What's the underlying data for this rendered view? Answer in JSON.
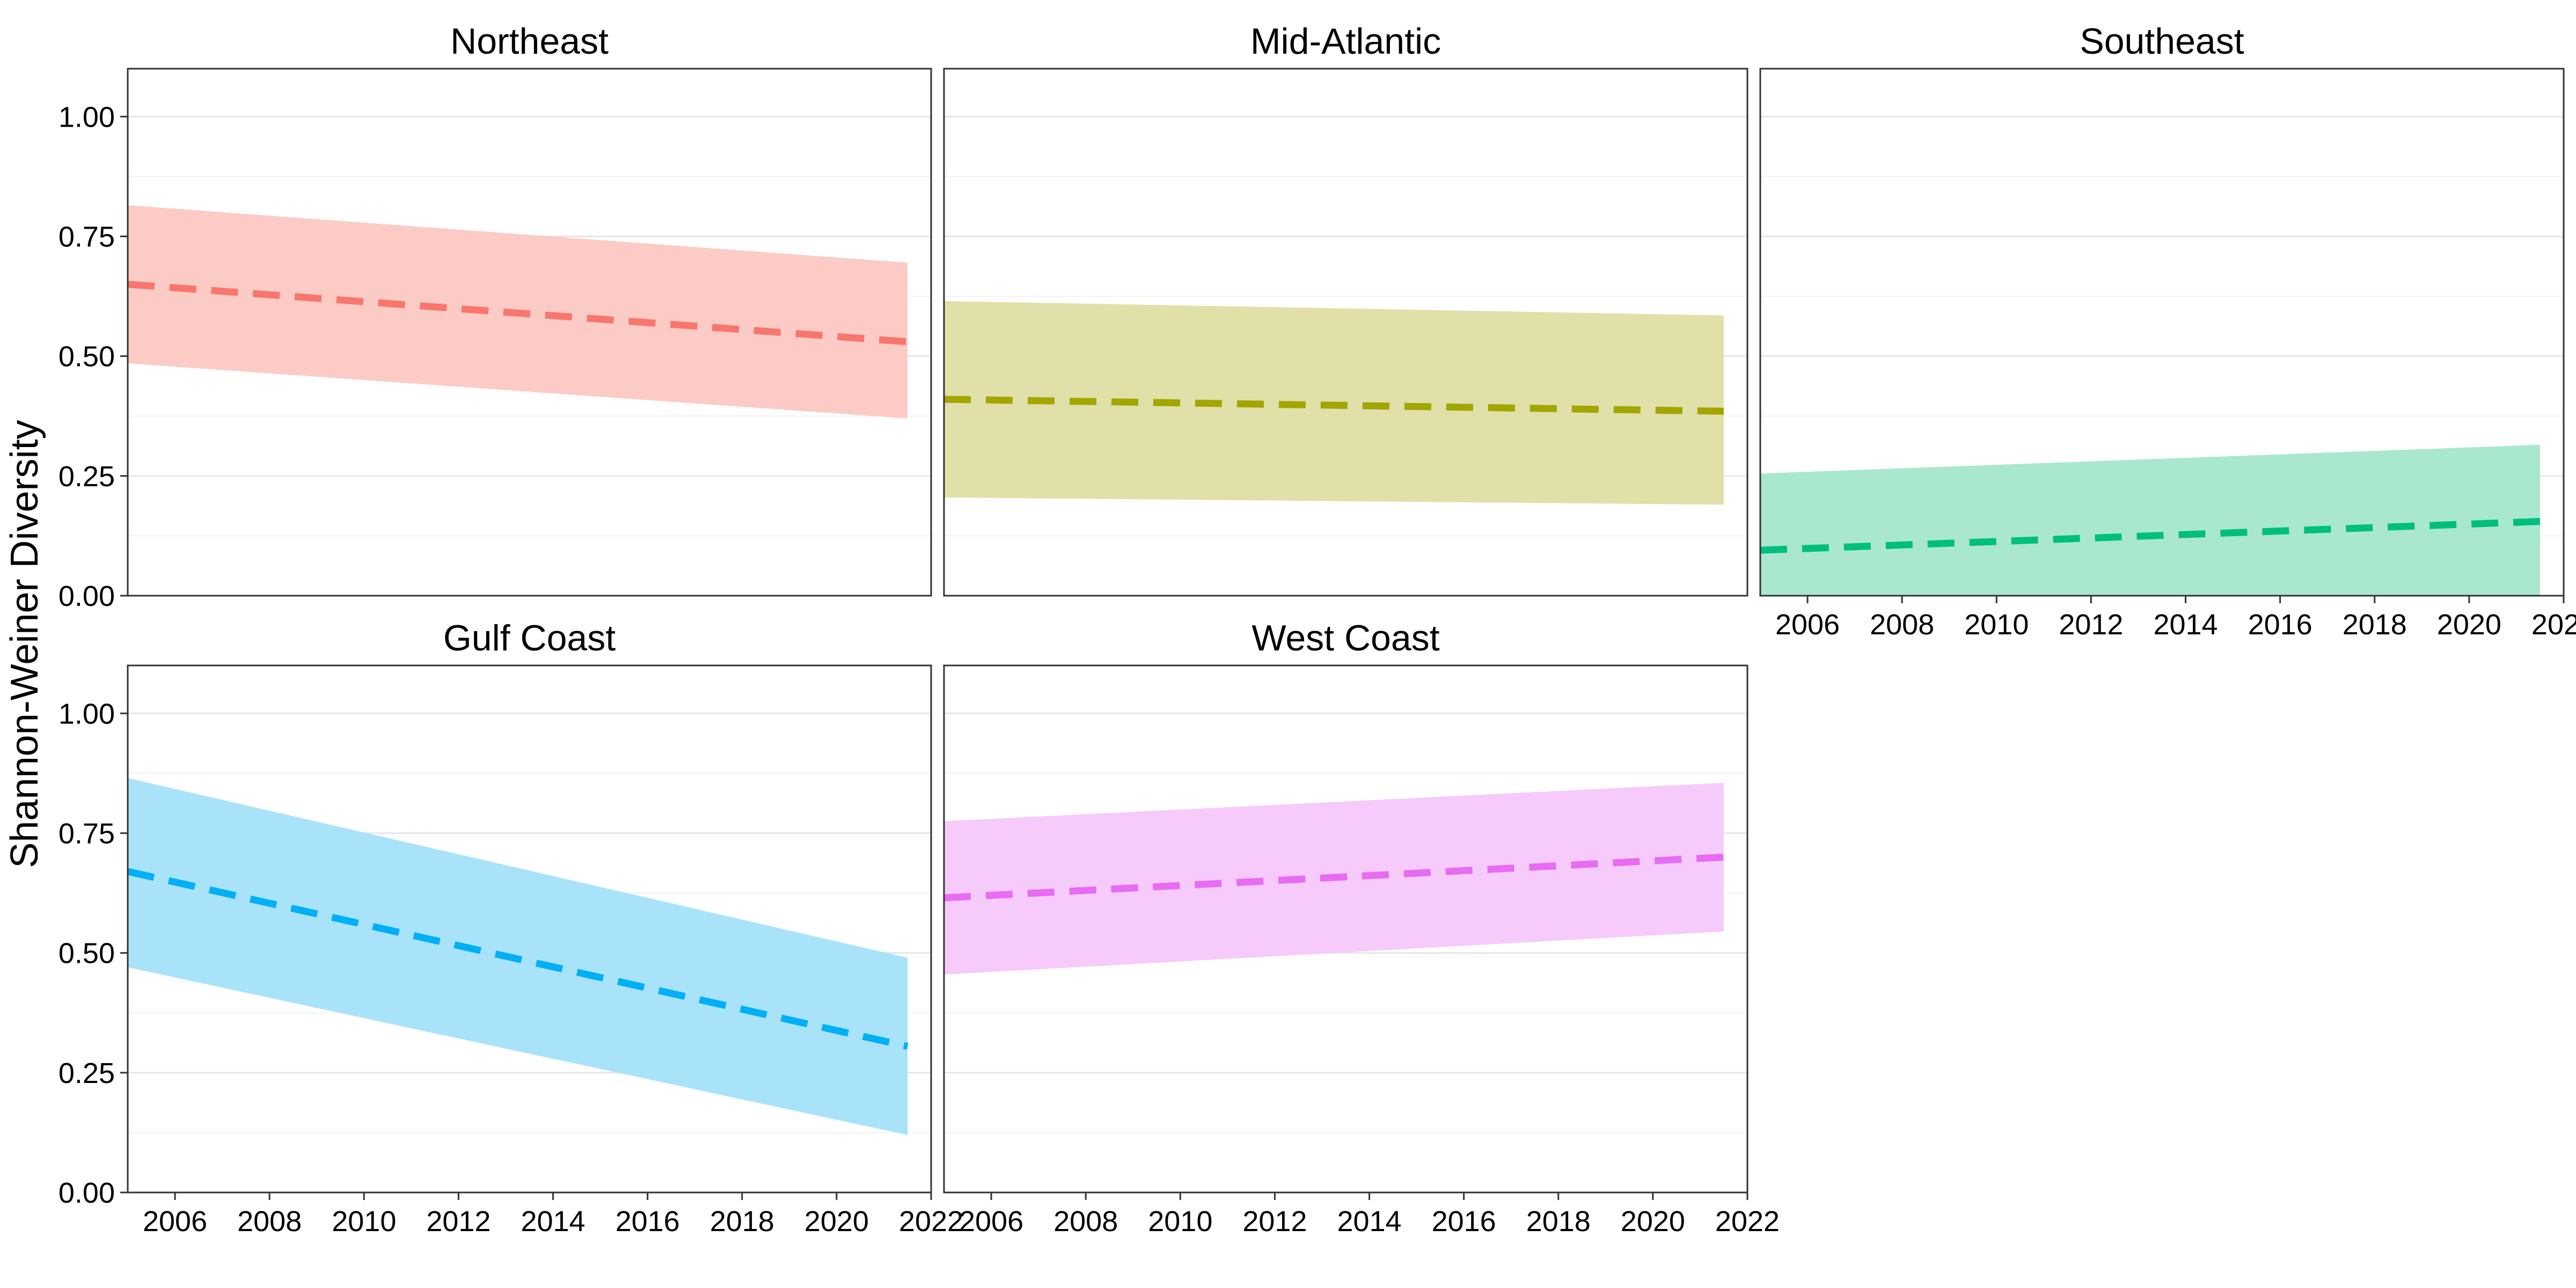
{
  "chart_data": {
    "type": "area",
    "ylabel": "Shannon-Weiner Diversity",
    "xlim": [
      2005,
      2022
    ],
    "ylim": [
      0,
      1.1
    ],
    "xticks": [
      2006,
      2008,
      2010,
      2012,
      2014,
      2016,
      2018,
      2020,
      2022
    ],
    "xtick_labels": [
      "2006",
      "2008",
      "2010",
      "2012",
      "2014",
      "2016",
      "2018",
      "2020",
      "2022"
    ],
    "yticks": [
      0,
      0.25,
      0.5,
      0.75,
      1.0
    ],
    "ytick_labels": [
      "0.00",
      "0.25",
      "0.50",
      "0.75",
      "1.00"
    ],
    "grid": true,
    "x_range": [
      2005,
      2021.5
    ],
    "panels": [
      {
        "title": "Northeast",
        "color": "#F8766D",
        "fill": "#FCCBC6",
        "fit": [
          0.65,
          0.53
        ],
        "lower": [
          0.485,
          0.37
        ],
        "upper": [
          0.815,
          0.695
        ]
      },
      {
        "title": "Mid-Atlantic",
        "color": "#A3A500",
        "fill": "#E1E0A9",
        "fit": [
          0.41,
          0.385
        ],
        "lower": [
          0.205,
          0.19
        ],
        "upper": [
          0.615,
          0.585
        ]
      },
      {
        "title": "Southeast",
        "color": "#00BF7D",
        "fill": "#A9E8CF",
        "fit": [
          0.095,
          0.155
        ],
        "lower": [
          0.0,
          0.0
        ],
        "upper": [
          0.255,
          0.315
        ]
      },
      {
        "title": "Gulf Coast",
        "color": "#00B0F6",
        "fill": "#A9E3FA",
        "fit": [
          0.67,
          0.305
        ],
        "lower": [
          0.47,
          0.12
        ],
        "upper": [
          0.865,
          0.49
        ]
      },
      {
        "title": "West Coast",
        "color": "#E76BF3",
        "fill": "#F6CAFA",
        "fit": [
          0.615,
          0.7
        ],
        "lower": [
          0.455,
          0.545
        ],
        "upper": [
          0.775,
          0.855
        ]
      }
    ]
  }
}
